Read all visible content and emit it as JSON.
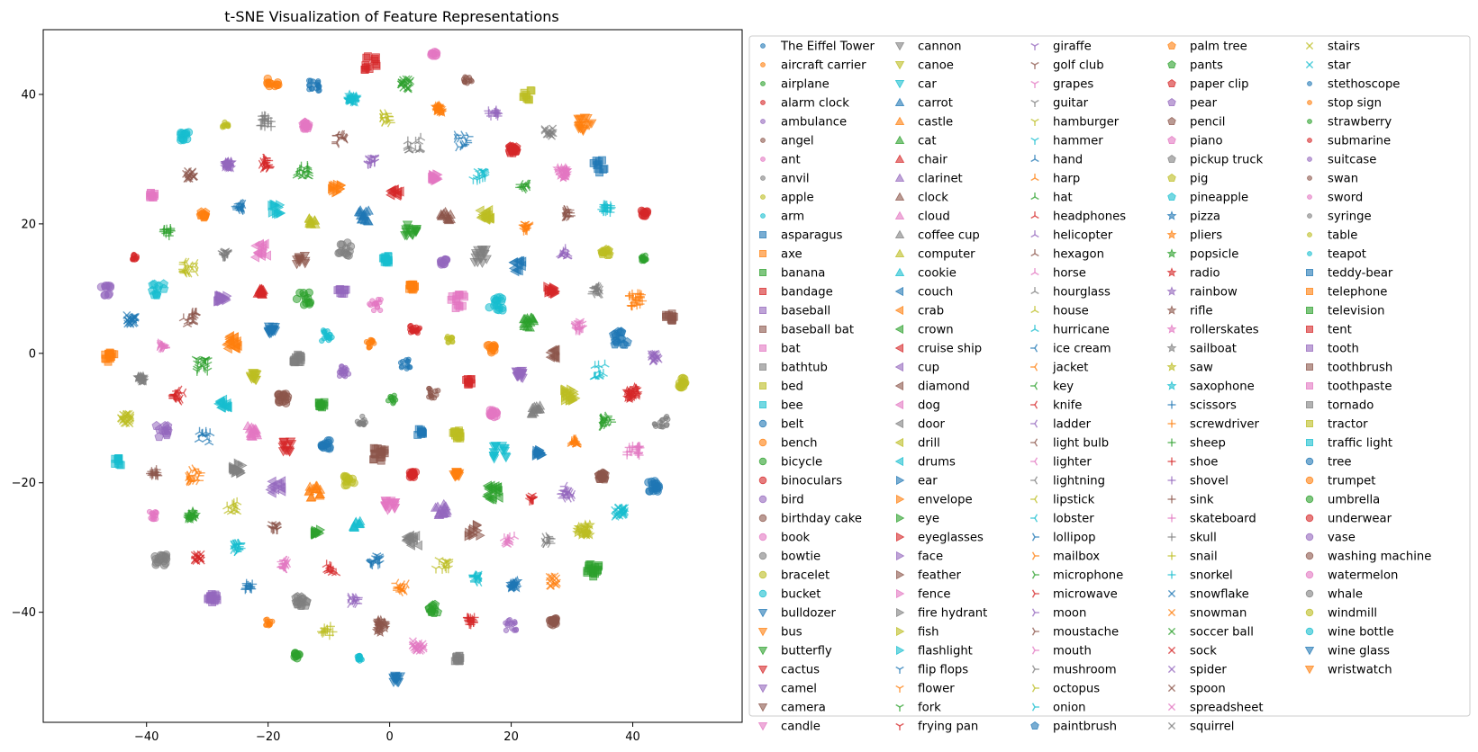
{
  "chart_data": {
    "type": "scatter",
    "title": "t-SNE Visualization of Feature Representations",
    "xlabel": "",
    "ylabel": "",
    "xlim": [
      -57,
      58
    ],
    "ylim": [
      -57,
      50
    ],
    "xticks": [
      -40,
      -20,
      0,
      20,
      40
    ],
    "yticks": [
      -40,
      -20,
      0,
      20,
      40
    ],
    "grid": false,
    "legend_position": "outside-right",
    "legend_columns": 6,
    "colors": [
      "#1f77b4",
      "#ff7f0e",
      "#2ca02c",
      "#d62728",
      "#9467bd",
      "#8c564b",
      "#e377c2",
      "#7f7f7f",
      "#bcbd22",
      "#17becf"
    ],
    "marker_cycle": [
      "point",
      "square",
      "circle",
      "triangle_down",
      "triangle_up",
      "triangle_left",
      "triangle_right",
      "tri_down",
      "tri_up",
      "tri_left",
      "tri_right",
      "pentagon",
      "star",
      "plus",
      "x"
    ],
    "series": [
      {
        "name": "The Eiffel Tower"
      },
      {
        "name": "aircraft carrier"
      },
      {
        "name": "airplane"
      },
      {
        "name": "alarm clock"
      },
      {
        "name": "ambulance"
      },
      {
        "name": "angel"
      },
      {
        "name": "ant"
      },
      {
        "name": "anvil"
      },
      {
        "name": "apple"
      },
      {
        "name": "arm"
      },
      {
        "name": "asparagus"
      },
      {
        "name": "axe"
      },
      {
        "name": "banana"
      },
      {
        "name": "bandage"
      },
      {
        "name": "baseball"
      },
      {
        "name": "baseball bat"
      },
      {
        "name": "bat"
      },
      {
        "name": "bathtub"
      },
      {
        "name": "bed"
      },
      {
        "name": "bee"
      },
      {
        "name": "belt"
      },
      {
        "name": "bench"
      },
      {
        "name": "bicycle"
      },
      {
        "name": "binoculars"
      },
      {
        "name": "bird"
      },
      {
        "name": "birthday cake"
      },
      {
        "name": "book"
      },
      {
        "name": "bowtie"
      },
      {
        "name": "bracelet"
      },
      {
        "name": "bucket"
      },
      {
        "name": "bulldozer"
      },
      {
        "name": "bus"
      },
      {
        "name": "butterfly"
      },
      {
        "name": "cactus"
      },
      {
        "name": "camel"
      },
      {
        "name": "camera"
      },
      {
        "name": "candle"
      },
      {
        "name": "cannon"
      },
      {
        "name": "canoe"
      },
      {
        "name": "car"
      },
      {
        "name": "carrot"
      },
      {
        "name": "castle"
      },
      {
        "name": "cat"
      },
      {
        "name": "chair"
      },
      {
        "name": "clarinet"
      },
      {
        "name": "clock"
      },
      {
        "name": "cloud"
      },
      {
        "name": "coffee cup"
      },
      {
        "name": "computer"
      },
      {
        "name": "cookie"
      },
      {
        "name": "couch"
      },
      {
        "name": "crab"
      },
      {
        "name": "crown"
      },
      {
        "name": "cruise ship"
      },
      {
        "name": "cup"
      },
      {
        "name": "diamond"
      },
      {
        "name": "dog"
      },
      {
        "name": "door"
      },
      {
        "name": "drill"
      },
      {
        "name": "drums"
      },
      {
        "name": "ear"
      },
      {
        "name": "envelope"
      },
      {
        "name": "eye"
      },
      {
        "name": "eyeglasses"
      },
      {
        "name": "face"
      },
      {
        "name": "feather"
      },
      {
        "name": "fence"
      },
      {
        "name": "fire hydrant"
      },
      {
        "name": "fish"
      },
      {
        "name": "flashlight"
      },
      {
        "name": "flip flops"
      },
      {
        "name": "flower"
      },
      {
        "name": "fork"
      },
      {
        "name": "frying pan"
      },
      {
        "name": "giraffe"
      },
      {
        "name": "golf club"
      },
      {
        "name": "grapes"
      },
      {
        "name": "guitar"
      },
      {
        "name": "hamburger"
      },
      {
        "name": "hammer"
      },
      {
        "name": "hand"
      },
      {
        "name": "harp"
      },
      {
        "name": "hat"
      },
      {
        "name": "headphones"
      },
      {
        "name": "helicopter"
      },
      {
        "name": "hexagon"
      },
      {
        "name": "horse"
      },
      {
        "name": "hourglass"
      },
      {
        "name": "house"
      },
      {
        "name": "hurricane"
      },
      {
        "name": "ice cream"
      },
      {
        "name": "jacket"
      },
      {
        "name": "key"
      },
      {
        "name": "knife"
      },
      {
        "name": "ladder"
      },
      {
        "name": "light bulb"
      },
      {
        "name": "lighter"
      },
      {
        "name": "lightning"
      },
      {
        "name": "lipstick"
      },
      {
        "name": "lobster"
      },
      {
        "name": "lollipop"
      },
      {
        "name": "mailbox"
      },
      {
        "name": "microphone"
      },
      {
        "name": "microwave"
      },
      {
        "name": "moon"
      },
      {
        "name": "moustache"
      },
      {
        "name": "mouth"
      },
      {
        "name": "mushroom"
      },
      {
        "name": "octopus"
      },
      {
        "name": "onion"
      },
      {
        "name": "paintbrush"
      },
      {
        "name": "palm tree"
      },
      {
        "name": "pants"
      },
      {
        "name": "paper clip"
      },
      {
        "name": "pear"
      },
      {
        "name": "pencil"
      },
      {
        "name": "piano"
      },
      {
        "name": "pickup truck"
      },
      {
        "name": "pig"
      },
      {
        "name": "pineapple"
      },
      {
        "name": "pizza"
      },
      {
        "name": "pliers"
      },
      {
        "name": "popsicle"
      },
      {
        "name": "radio"
      },
      {
        "name": "rainbow"
      },
      {
        "name": "rifle"
      },
      {
        "name": "rollerskates"
      },
      {
        "name": "sailboat"
      },
      {
        "name": "saw"
      },
      {
        "name": "saxophone"
      },
      {
        "name": "scissors"
      },
      {
        "name": "screwdriver"
      },
      {
        "name": "sheep"
      },
      {
        "name": "shoe"
      },
      {
        "name": "shovel"
      },
      {
        "name": "sink"
      },
      {
        "name": "skateboard"
      },
      {
        "name": "skull"
      },
      {
        "name": "snail"
      },
      {
        "name": "snorkel"
      },
      {
        "name": "snowflake"
      },
      {
        "name": "snowman"
      },
      {
        "name": "soccer ball"
      },
      {
        "name": "sock"
      },
      {
        "name": "spider"
      },
      {
        "name": "spoon"
      },
      {
        "name": "spreadsheet"
      },
      {
        "name": "squirrel"
      },
      {
        "name": "stairs"
      },
      {
        "name": "star"
      },
      {
        "name": "stethoscope"
      },
      {
        "name": "stop sign"
      },
      {
        "name": "strawberry"
      },
      {
        "name": "submarine"
      },
      {
        "name": "suitcase"
      },
      {
        "name": "swan"
      },
      {
        "name": "sword"
      },
      {
        "name": "syringe"
      },
      {
        "name": "table"
      },
      {
        "name": "teapot"
      },
      {
        "name": "teddy-bear"
      },
      {
        "name": "telephone"
      },
      {
        "name": "television"
      },
      {
        "name": "tent"
      },
      {
        "name": "tooth"
      },
      {
        "name": "toothbrush"
      },
      {
        "name": "toothpaste"
      },
      {
        "name": "tornado"
      },
      {
        "name": "tractor"
      },
      {
        "name": "traffic light"
      },
      {
        "name": "tree"
      },
      {
        "name": "trumpet"
      },
      {
        "name": "umbrella"
      },
      {
        "name": "underwear"
      },
      {
        "name": "vase"
      },
      {
        "name": "washing machine"
      },
      {
        "name": "watermelon"
      },
      {
        "name": "whale"
      },
      {
        "name": "windmill"
      },
      {
        "name": "wine bottle"
      },
      {
        "name": "wine glass"
      },
      {
        "name": "wristwatch"
      }
    ]
  }
}
